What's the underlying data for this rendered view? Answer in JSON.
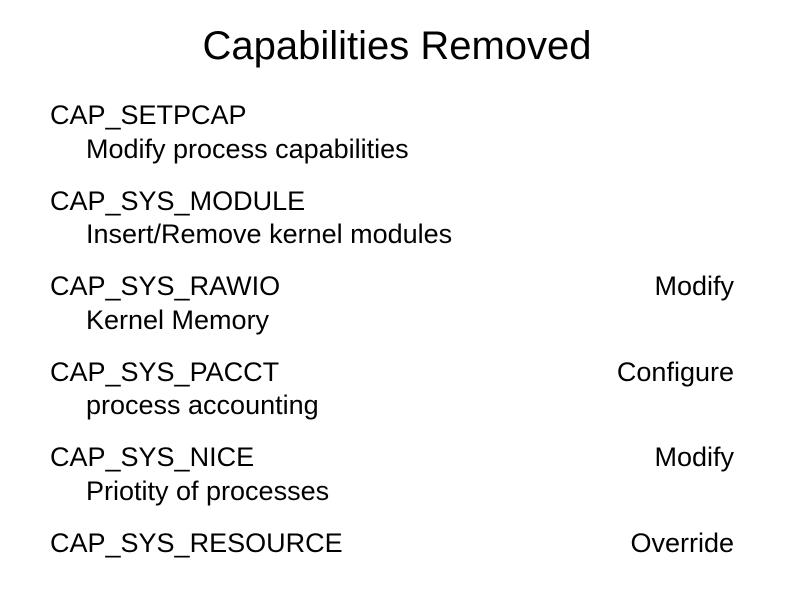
{
  "colors": {
    "background": "#ffffff",
    "text": "#000000"
  },
  "typography": {
    "title_fontsize": 40,
    "body_fontsize": 27,
    "font_family": "Arial"
  },
  "title": "Capabilities Removed",
  "items": [
    {
      "cap": "CAP_SETPCAP",
      "right": "",
      "desc": "Modify process capabilities"
    },
    {
      "cap": "CAP_SYS_MODULE",
      "right": "",
      "desc": "Insert/Remove kernel modules"
    },
    {
      "cap": "CAP_SYS_RAWIO",
      "right": "Modify",
      "desc": "Kernel Memory"
    },
    {
      "cap": "CAP_SYS_PACCT",
      "right": "Configure",
      "desc": "process accounting"
    },
    {
      "cap": "CAP_SYS_NICE",
      "right": "Modify",
      "desc": "Priotity of processes"
    },
    {
      "cap": "CAP_SYS_RESOURCE",
      "right": "Override",
      "desc": ""
    }
  ]
}
